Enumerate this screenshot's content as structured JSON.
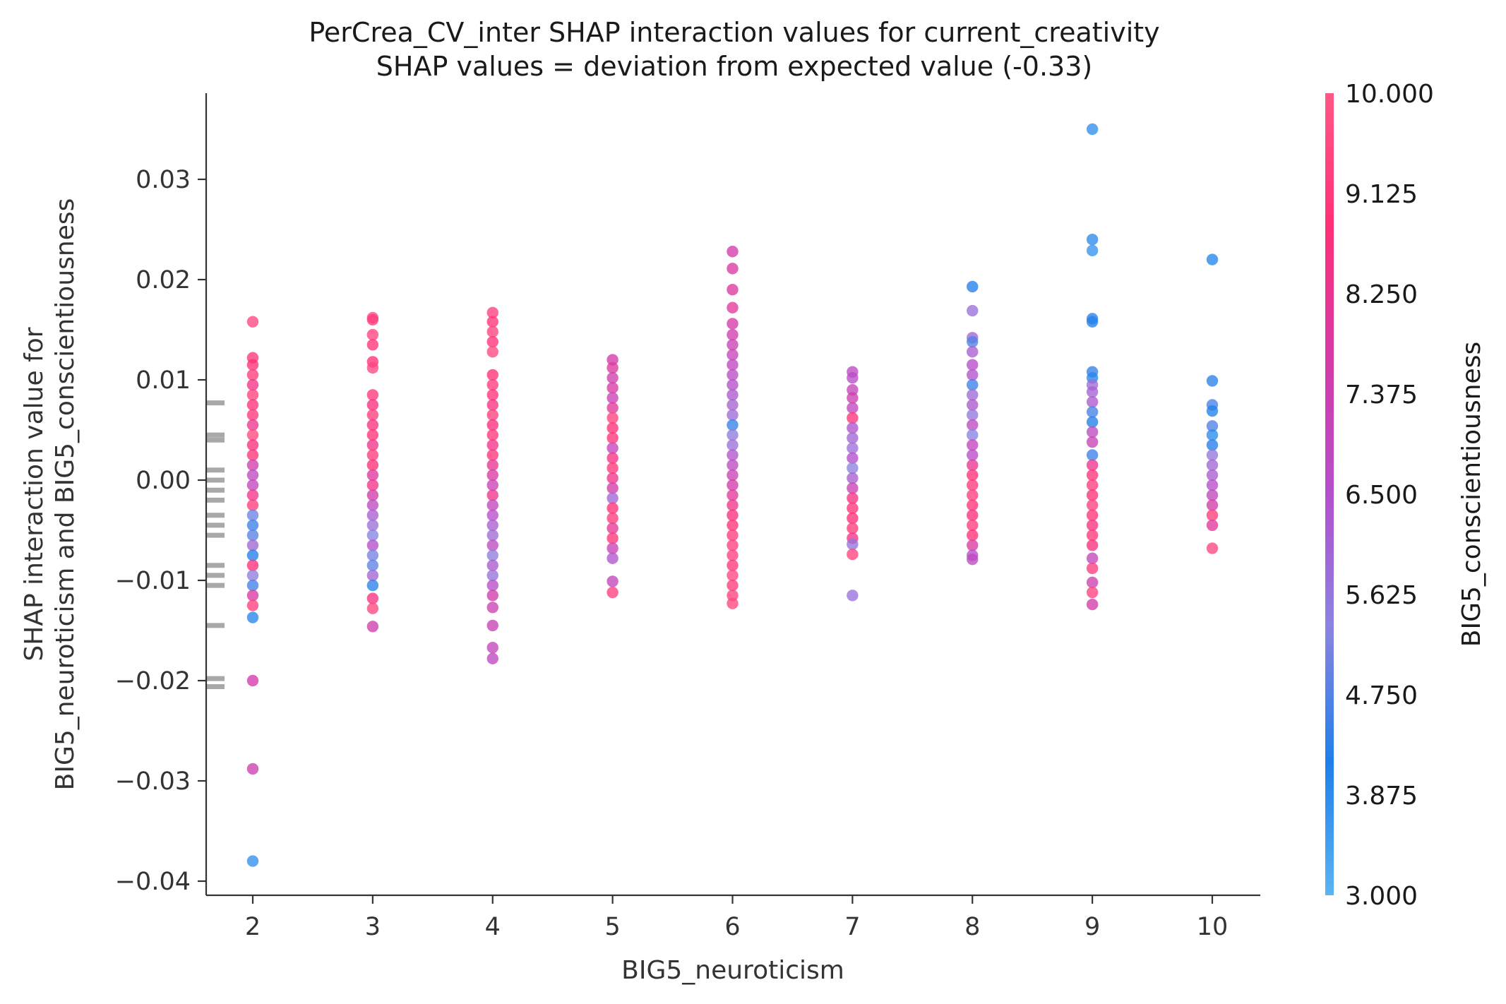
{
  "chart_data": {
    "type": "scatter",
    "title": "PerCrea_CV_inter SHAP interaction values for current_creativity",
    "subtitle": "SHAP values = deviation from expected value (-0.33)",
    "xlabel": "BIG5_neuroticism",
    "ylabel": [
      "SHAP interaction value for",
      "BIG5_neuroticism and BIG5_conscientiousness"
    ],
    "xlim": [
      1.6,
      10.4
    ],
    "ylim": [
      -0.0415,
      0.0385
    ],
    "x_ticks": [
      2,
      3,
      4,
      5,
      6,
      7,
      8,
      9,
      10
    ],
    "y_ticks": [
      0.03,
      0.02,
      0.01,
      0.0,
      -0.01,
      -0.02,
      -0.03,
      -0.04
    ],
    "y_tick_labels": [
      "0.03",
      "0.02",
      "0.01",
      "0.00",
      "−0.01",
      "−0.02",
      "−0.03",
      "−0.04"
    ],
    "grid": false,
    "colorbar": {
      "label": "BIG5_conscientiousness",
      "range": [
        3.0,
        10.0
      ],
      "tick_labels": [
        "10.000",
        "9.125",
        "8.250",
        "7.375",
        "6.500",
        "5.625",
        "4.750",
        "3.875",
        "3.000"
      ],
      "colors": [
        "#5ab4f2",
        "#1f7fea",
        "#8a84e0",
        "#b44fcb",
        "#d53aa8",
        "#ff2f78",
        "#ff5785"
      ]
    },
    "rug_y_values": [
      0.0077,
      0.0045,
      0.004,
      0.001,
      0.0,
      -0.001,
      -0.002,
      -0.0035,
      -0.0045,
      -0.0055,
      -0.0085,
      -0.0095,
      -0.0105,
      -0.0145,
      -0.0198,
      -0.0206
    ],
    "points": [
      {
        "x": 2,
        "y": 0.0158,
        "c": 9.5
      },
      {
        "x": 2,
        "y": 0.0122,
        "c": 9.0
      },
      {
        "x": 2,
        "y": 0.0115,
        "c": 8.8
      },
      {
        "x": 2,
        "y": 0.0105,
        "c": 9.2
      },
      {
        "x": 2,
        "y": 0.0095,
        "c": 8.5
      },
      {
        "x": 2,
        "y": 0.0085,
        "c": 9.4
      },
      {
        "x": 2,
        "y": 0.0075,
        "c": 8.9
      },
      {
        "x": 2,
        "y": 0.0065,
        "c": 9.1
      },
      {
        "x": 2,
        "y": 0.0055,
        "c": 8.3
      },
      {
        "x": 2,
        "y": 0.0045,
        "c": 9.6
      },
      {
        "x": 2,
        "y": 0.0035,
        "c": 8.7
      },
      {
        "x": 2,
        "y": 0.0025,
        "c": 9.0
      },
      {
        "x": 2,
        "y": 0.0015,
        "c": 7.5
      },
      {
        "x": 2,
        "y": 0.0005,
        "c": 6.8
      },
      {
        "x": 2,
        "y": -0.0005,
        "c": 7.0
      },
      {
        "x": 2,
        "y": -0.0015,
        "c": 8.5
      },
      {
        "x": 2,
        "y": -0.0025,
        "c": 9.2
      },
      {
        "x": 2,
        "y": -0.0035,
        "c": 5.0
      },
      {
        "x": 2,
        "y": -0.0045,
        "c": 4.5
      },
      {
        "x": 2,
        "y": -0.0055,
        "c": 4.8
      },
      {
        "x": 2,
        "y": -0.0065,
        "c": 6.0
      },
      {
        "x": 2,
        "y": -0.0075,
        "c": 4.2
      },
      {
        "x": 2,
        "y": -0.0085,
        "c": 8.8
      },
      {
        "x": 2,
        "y": -0.0095,
        "c": 5.5
      },
      {
        "x": 2,
        "y": -0.0105,
        "c": 4.6
      },
      {
        "x": 2,
        "y": -0.0115,
        "c": 7.8
      },
      {
        "x": 2,
        "y": -0.0125,
        "c": 9.3
      },
      {
        "x": 2,
        "y": -0.0137,
        "c": 4.0
      },
      {
        "x": 2,
        "y": -0.02,
        "c": 7.6
      },
      {
        "x": 2,
        "y": -0.0288,
        "c": 7.4
      },
      {
        "x": 2,
        "y": -0.038,
        "c": 3.8
      },
      {
        "x": 3,
        "y": 0.0162,
        "c": 9.6
      },
      {
        "x": 3,
        "y": 0.016,
        "c": 9.2
      },
      {
        "x": 3,
        "y": 0.0145,
        "c": 9.4
      },
      {
        "x": 3,
        "y": 0.0135,
        "c": 9.0
      },
      {
        "x": 3,
        "y": 0.0118,
        "c": 8.9
      },
      {
        "x": 3,
        "y": 0.0112,
        "c": 9.5
      },
      {
        "x": 3,
        "y": 0.0085,
        "c": 9.1
      },
      {
        "x": 3,
        "y": 0.0075,
        "c": 8.7
      },
      {
        "x": 3,
        "y": 0.0065,
        "c": 9.3
      },
      {
        "x": 3,
        "y": 0.0055,
        "c": 8.6
      },
      {
        "x": 3,
        "y": 0.0045,
        "c": 9.0
      },
      {
        "x": 3,
        "y": 0.0035,
        "c": 8.4
      },
      {
        "x": 3,
        "y": 0.0025,
        "c": 9.2
      },
      {
        "x": 3,
        "y": 0.0015,
        "c": 8.8
      },
      {
        "x": 3,
        "y": 0.0005,
        "c": 7.9
      },
      {
        "x": 3,
        "y": -0.0005,
        "c": 8.5
      },
      {
        "x": 3,
        "y": -0.0015,
        "c": 7.6
      },
      {
        "x": 3,
        "y": -0.0025,
        "c": 6.8
      },
      {
        "x": 3,
        "y": -0.0035,
        "c": 6.2
      },
      {
        "x": 3,
        "y": -0.0045,
        "c": 5.8
      },
      {
        "x": 3,
        "y": -0.0055,
        "c": 5.3
      },
      {
        "x": 3,
        "y": -0.0065,
        "c": 6.5
      },
      {
        "x": 3,
        "y": -0.0075,
        "c": 5.1
      },
      {
        "x": 3,
        "y": -0.0085,
        "c": 4.9
      },
      {
        "x": 3,
        "y": -0.0095,
        "c": 6.0
      },
      {
        "x": 3,
        "y": -0.0105,
        "c": 4.3
      },
      {
        "x": 3,
        "y": -0.0118,
        "c": 8.6
      },
      {
        "x": 3,
        "y": -0.0128,
        "c": 9.5
      },
      {
        "x": 3,
        "y": -0.0146,
        "c": 7.5
      },
      {
        "x": 4,
        "y": 0.0167,
        "c": 9.3
      },
      {
        "x": 4,
        "y": 0.0158,
        "c": 9.0
      },
      {
        "x": 4,
        "y": 0.0148,
        "c": 9.4
      },
      {
        "x": 4,
        "y": 0.0138,
        "c": 8.9
      },
      {
        "x": 4,
        "y": 0.0128,
        "c": 9.5
      },
      {
        "x": 4,
        "y": 0.0105,
        "c": 8.8
      },
      {
        "x": 4,
        "y": 0.0095,
        "c": 9.2
      },
      {
        "x": 4,
        "y": 0.0085,
        "c": 9.0
      },
      {
        "x": 4,
        "y": 0.0075,
        "c": 8.6
      },
      {
        "x": 4,
        "y": 0.0065,
        "c": 9.3
      },
      {
        "x": 4,
        "y": 0.0055,
        "c": 8.7
      },
      {
        "x": 4,
        "y": 0.0045,
        "c": 9.1
      },
      {
        "x": 4,
        "y": 0.0035,
        "c": 8.5
      },
      {
        "x": 4,
        "y": 0.0025,
        "c": 9.0
      },
      {
        "x": 4,
        "y": 0.0015,
        "c": 8.2
      },
      {
        "x": 4,
        "y": 0.0005,
        "c": 7.8
      },
      {
        "x": 4,
        "y": -0.0005,
        "c": 7.2
      },
      {
        "x": 4,
        "y": -0.0015,
        "c": 8.4
      },
      {
        "x": 4,
        "y": -0.0025,
        "c": 7.0
      },
      {
        "x": 4,
        "y": -0.0035,
        "c": 6.6
      },
      {
        "x": 4,
        "y": -0.0045,
        "c": 6.2
      },
      {
        "x": 4,
        "y": -0.0055,
        "c": 5.9
      },
      {
        "x": 4,
        "y": -0.0065,
        "c": 6.8
      },
      {
        "x": 4,
        "y": -0.0075,
        "c": 5.5
      },
      {
        "x": 4,
        "y": -0.0085,
        "c": 6.3
      },
      {
        "x": 4,
        "y": -0.0095,
        "c": 5.7
      },
      {
        "x": 4,
        "y": -0.0105,
        "c": 6.6
      },
      {
        "x": 4,
        "y": -0.0115,
        "c": 7.6
      },
      {
        "x": 4,
        "y": -0.0127,
        "c": 7.3
      },
      {
        "x": 4,
        "y": -0.0145,
        "c": 7.2
      },
      {
        "x": 4,
        "y": -0.0167,
        "c": 7.0
      },
      {
        "x": 4,
        "y": -0.0178,
        "c": 6.9
      },
      {
        "x": 5,
        "y": 0.012,
        "c": 7.6
      },
      {
        "x": 5,
        "y": 0.0112,
        "c": 7.9
      },
      {
        "x": 5,
        "y": 0.0102,
        "c": 7.4
      },
      {
        "x": 5,
        "y": 0.0092,
        "c": 7.8
      },
      {
        "x": 5,
        "y": 0.0082,
        "c": 7.2
      },
      {
        "x": 5,
        "y": 0.0072,
        "c": 8.0
      },
      {
        "x": 5,
        "y": 0.0062,
        "c": 9.4
      },
      {
        "x": 5,
        "y": 0.0052,
        "c": 8.8
      },
      {
        "x": 5,
        "y": 0.0042,
        "c": 9.0
      },
      {
        "x": 5,
        "y": 0.0032,
        "c": 7.0
      },
      {
        "x": 5,
        "y": 0.0022,
        "c": 8.6
      },
      {
        "x": 5,
        "y": 0.0012,
        "c": 9.1
      },
      {
        "x": 5,
        "y": 0.0002,
        "c": 8.4
      },
      {
        "x": 5,
        "y": -0.0008,
        "c": 7.6
      },
      {
        "x": 5,
        "y": -0.0018,
        "c": 6.0
      },
      {
        "x": 5,
        "y": -0.0028,
        "c": 8.9
      },
      {
        "x": 5,
        "y": -0.0038,
        "c": 9.2
      },
      {
        "x": 5,
        "y": -0.0048,
        "c": 8.1
      },
      {
        "x": 5,
        "y": -0.0058,
        "c": 9.0
      },
      {
        "x": 5,
        "y": -0.0068,
        "c": 7.2
      },
      {
        "x": 5,
        "y": -0.0078,
        "c": 6.4
      },
      {
        "x": 5,
        "y": -0.0101,
        "c": 7.0
      },
      {
        "x": 5,
        "y": -0.0112,
        "c": 9.3
      },
      {
        "x": 6,
        "y": 0.0228,
        "c": 7.6
      },
      {
        "x": 6,
        "y": 0.0211,
        "c": 7.8
      },
      {
        "x": 6,
        "y": 0.019,
        "c": 7.9
      },
      {
        "x": 6,
        "y": 0.0172,
        "c": 8.0
      },
      {
        "x": 6,
        "y": 0.0156,
        "c": 7.7
      },
      {
        "x": 6,
        "y": 0.0145,
        "c": 7.5
      },
      {
        "x": 6,
        "y": 0.0135,
        "c": 7.3
      },
      {
        "x": 6,
        "y": 0.0125,
        "c": 7.1
      },
      {
        "x": 6,
        "y": 0.0115,
        "c": 6.9
      },
      {
        "x": 6,
        "y": 0.0105,
        "c": 6.7
      },
      {
        "x": 6,
        "y": 0.0095,
        "c": 6.5
      },
      {
        "x": 6,
        "y": 0.0085,
        "c": 6.3
      },
      {
        "x": 6,
        "y": 0.0075,
        "c": 6.1
      },
      {
        "x": 6,
        "y": 0.0065,
        "c": 5.9
      },
      {
        "x": 6,
        "y": 0.0055,
        "c": 4.4
      },
      {
        "x": 6,
        "y": 0.0045,
        "c": 5.5
      },
      {
        "x": 6,
        "y": 0.0035,
        "c": 5.8
      },
      {
        "x": 6,
        "y": 0.0025,
        "c": 6.4
      },
      {
        "x": 6,
        "y": 0.0015,
        "c": 6.8
      },
      {
        "x": 6,
        "y": 0.0005,
        "c": 7.2
      },
      {
        "x": 6,
        "y": -0.0005,
        "c": 7.6
      },
      {
        "x": 6,
        "y": -0.0015,
        "c": 8.0
      },
      {
        "x": 6,
        "y": -0.0025,
        "c": 8.4
      },
      {
        "x": 6,
        "y": -0.0035,
        "c": 8.7
      },
      {
        "x": 6,
        "y": -0.0045,
        "c": 9.0
      },
      {
        "x": 6,
        "y": -0.0055,
        "c": 9.2
      },
      {
        "x": 6,
        "y": -0.0065,
        "c": 9.3
      },
      {
        "x": 6,
        "y": -0.0075,
        "c": 9.4
      },
      {
        "x": 6,
        "y": -0.0085,
        "c": 9.1
      },
      {
        "x": 6,
        "y": -0.0095,
        "c": 9.5
      },
      {
        "x": 6,
        "y": -0.0105,
        "c": 9.2
      },
      {
        "x": 6,
        "y": -0.0115,
        "c": 9.4
      },
      {
        "x": 6,
        "y": -0.0123,
        "c": 9.5
      },
      {
        "x": 7,
        "y": 0.0108,
        "c": 6.8
      },
      {
        "x": 7,
        "y": 0.0102,
        "c": 6.6
      },
      {
        "x": 7,
        "y": 0.009,
        "c": 7.1
      },
      {
        "x": 7,
        "y": 0.0082,
        "c": 7.4
      },
      {
        "x": 7,
        "y": 0.0072,
        "c": 7.0
      },
      {
        "x": 7,
        "y": 0.0062,
        "c": 9.0
      },
      {
        "x": 7,
        "y": 0.0052,
        "c": 6.4
      },
      {
        "x": 7,
        "y": 0.0042,
        "c": 6.0
      },
      {
        "x": 7,
        "y": 0.0032,
        "c": 5.8
      },
      {
        "x": 7,
        "y": 0.0022,
        "c": 6.5
      },
      {
        "x": 7,
        "y": 0.0012,
        "c": 5.4
      },
      {
        "x": 7,
        "y": 0.0002,
        "c": 6.2
      },
      {
        "x": 7,
        "y": -0.0008,
        "c": 7.3
      },
      {
        "x": 7,
        "y": -0.0018,
        "c": 8.6
      },
      {
        "x": 7,
        "y": -0.0028,
        "c": 9.0
      },
      {
        "x": 7,
        "y": -0.0038,
        "c": 8.8
      },
      {
        "x": 7,
        "y": -0.0048,
        "c": 9.2
      },
      {
        "x": 7,
        "y": -0.0058,
        "c": 8.4
      },
      {
        "x": 7,
        "y": -0.0064,
        "c": 5.7
      },
      {
        "x": 7,
        "y": -0.0074,
        "c": 9.4
      },
      {
        "x": 7,
        "y": -0.0115,
        "c": 5.8
      },
      {
        "x": 8,
        "y": 0.0193,
        "c": 4.2
      },
      {
        "x": 8,
        "y": 0.0169,
        "c": 5.8
      },
      {
        "x": 8,
        "y": 0.0142,
        "c": 6.0
      },
      {
        "x": 8,
        "y": 0.0138,
        "c": 4.7
      },
      {
        "x": 8,
        "y": 0.0128,
        "c": 6.2
      },
      {
        "x": 8,
        "y": 0.0115,
        "c": 6.6
      },
      {
        "x": 8,
        "y": 0.0105,
        "c": 6.4
      },
      {
        "x": 8,
        "y": 0.0095,
        "c": 4.5
      },
      {
        "x": 8,
        "y": 0.0085,
        "c": 5.9
      },
      {
        "x": 8,
        "y": 0.0075,
        "c": 6.3
      },
      {
        "x": 8,
        "y": 0.0065,
        "c": 5.6
      },
      {
        "x": 8,
        "y": 0.0055,
        "c": 6.8
      },
      {
        "x": 8,
        "y": 0.0045,
        "c": 5.3
      },
      {
        "x": 8,
        "y": 0.0035,
        "c": 7.0
      },
      {
        "x": 8,
        "y": 0.0025,
        "c": 6.6
      },
      {
        "x": 8,
        "y": 0.0015,
        "c": 8.2
      },
      {
        "x": 8,
        "y": 0.0005,
        "c": 8.8
      },
      {
        "x": 8,
        "y": -0.0005,
        "c": 9.1
      },
      {
        "x": 8,
        "y": -0.0015,
        "c": 9.3
      },
      {
        "x": 8,
        "y": -0.0025,
        "c": 9.0
      },
      {
        "x": 8,
        "y": -0.0035,
        "c": 8.7
      },
      {
        "x": 8,
        "y": -0.0045,
        "c": 9.2
      },
      {
        "x": 8,
        "y": -0.0055,
        "c": 8.9
      },
      {
        "x": 8,
        "y": -0.0065,
        "c": 7.8
      },
      {
        "x": 8,
        "y": -0.0075,
        "c": 6.6
      },
      {
        "x": 8,
        "y": -0.0079,
        "c": 6.8
      },
      {
        "x": 9,
        "y": 0.035,
        "c": 3.8
      },
      {
        "x": 9,
        "y": 0.024,
        "c": 3.9
      },
      {
        "x": 9,
        "y": 0.0229,
        "c": 3.7
      },
      {
        "x": 9,
        "y": 0.0161,
        "c": 4.3
      },
      {
        "x": 9,
        "y": 0.0158,
        "c": 4.1
      },
      {
        "x": 9,
        "y": 0.0108,
        "c": 4.4
      },
      {
        "x": 9,
        "y": 0.0102,
        "c": 4.0
      },
      {
        "x": 9,
        "y": 0.0095,
        "c": 5.9
      },
      {
        "x": 9,
        "y": 0.0088,
        "c": 6.1
      },
      {
        "x": 9,
        "y": 0.0078,
        "c": 6.3
      },
      {
        "x": 9,
        "y": 0.0068,
        "c": 4.6
      },
      {
        "x": 9,
        "y": 0.0058,
        "c": 4.2
      },
      {
        "x": 9,
        "y": 0.0048,
        "c": 6.8
      },
      {
        "x": 9,
        "y": 0.0038,
        "c": 7.2
      },
      {
        "x": 9,
        "y": 0.0025,
        "c": 4.5
      },
      {
        "x": 9,
        "y": 0.0015,
        "c": 8.4
      },
      {
        "x": 9,
        "y": 0.0005,
        "c": 9.0
      },
      {
        "x": 9,
        "y": -0.0005,
        "c": 9.2
      },
      {
        "x": 9,
        "y": -0.0015,
        "c": 8.8
      },
      {
        "x": 9,
        "y": -0.0025,
        "c": 9.3
      },
      {
        "x": 9,
        "y": -0.0035,
        "c": 9.0
      },
      {
        "x": 9,
        "y": -0.0045,
        "c": 8.6
      },
      {
        "x": 9,
        "y": -0.0055,
        "c": 9.1
      },
      {
        "x": 9,
        "y": -0.0065,
        "c": 8.7
      },
      {
        "x": 9,
        "y": -0.0078,
        "c": 7.0
      },
      {
        "x": 9,
        "y": -0.0088,
        "c": 9.2
      },
      {
        "x": 9,
        "y": -0.0102,
        "c": 7.4
      },
      {
        "x": 9,
        "y": -0.0112,
        "c": 9.4
      },
      {
        "x": 9,
        "y": -0.0124,
        "c": 7.6
      },
      {
        "x": 10,
        "y": 0.022,
        "c": 4.0
      },
      {
        "x": 10,
        "y": 0.0099,
        "c": 4.3
      },
      {
        "x": 10,
        "y": 0.0075,
        "c": 4.6
      },
      {
        "x": 10,
        "y": 0.0069,
        "c": 4.1
      },
      {
        "x": 10,
        "y": 0.0054,
        "c": 4.7
      },
      {
        "x": 10,
        "y": 0.0045,
        "c": 3.9
      },
      {
        "x": 10,
        "y": 0.0035,
        "c": 4.2
      },
      {
        "x": 10,
        "y": 0.0025,
        "c": 5.6
      },
      {
        "x": 10,
        "y": 0.0015,
        "c": 6.0
      },
      {
        "x": 10,
        "y": 0.0005,
        "c": 6.2
      },
      {
        "x": 10,
        "y": -0.0005,
        "c": 6.6
      },
      {
        "x": 10,
        "y": -0.0015,
        "c": 7.0
      },
      {
        "x": 10,
        "y": -0.0025,
        "c": 7.6
      },
      {
        "x": 10,
        "y": -0.0035,
        "c": 9.2
      },
      {
        "x": 10,
        "y": -0.0045,
        "c": 8.0
      },
      {
        "x": 10,
        "y": -0.0068,
        "c": 9.5
      }
    ]
  }
}
